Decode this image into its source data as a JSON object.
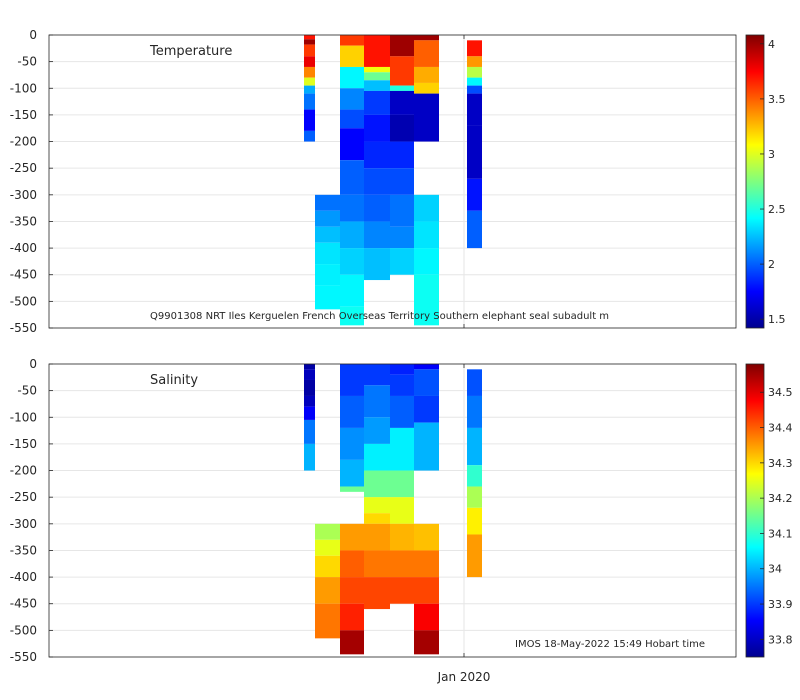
{
  "chart_data": [
    {
      "type": "heatmap",
      "title": "Temperature",
      "annotation": "Q9901308 NRT Iles Kerguelen French Overseas Territory Southern elephant seal subadult m",
      "ylim": [
        -550,
        0
      ],
      "yticks": [
        0,
        -50,
        -100,
        -150,
        -200,
        -250,
        -300,
        -350,
        -400,
        -450,
        -500,
        -550
      ],
      "xtick_label": "",
      "colorbar": {
        "min": 1.42,
        "max": 4.08,
        "ticks": [
          1.5,
          2,
          2.5,
          3,
          3.5,
          4
        ],
        "tick_labels": [
          "1.5",
          "2",
          "2.5",
          "3",
          "3.5",
          "4"
        ],
        "colormap": "jet"
      },
      "profiles": [
        {
          "column": 1,
          "segments": [
            [
              0,
              8,
              3.7
            ],
            [
              8,
              18,
              4.0
            ],
            [
              18,
              40,
              3.6
            ],
            [
              40,
              60,
              3.8
            ],
            [
              60,
              80,
              3.4
            ],
            [
              80,
              95,
              3.0
            ],
            [
              95,
              110,
              2.2
            ],
            [
              110,
              140,
              2.05
            ],
            [
              140,
              180,
              1.75
            ],
            [
              180,
              200,
              2.0
            ]
          ]
        },
        {
          "column": 2,
          "segments": [
            [
              300,
              330,
              2.05
            ],
            [
              330,
              360,
              2.15
            ],
            [
              360,
              390,
              2.25
            ],
            [
              390,
              430,
              2.35
            ],
            [
              430,
              470,
              2.38
            ],
            [
              470,
              515,
              2.4
            ]
          ]
        },
        {
          "column": 3,
          "segments": [
            [
              0,
              20,
              3.6
            ],
            [
              20,
              60,
              3.2
            ],
            [
              60,
              100,
              2.4
            ],
            [
              100,
              140,
              2.1
            ],
            [
              140,
              175,
              1.95
            ],
            [
              175,
              235,
              1.75
            ],
            [
              235,
              300,
              2.0
            ],
            [
              300,
              350,
              2.05
            ],
            [
              350,
              400,
              2.2
            ],
            [
              400,
              450,
              2.3
            ],
            [
              450,
              510,
              2.4
            ],
            [
              510,
              545,
              2.45
            ]
          ]
        },
        {
          "column": 4,
          "segments": [
            [
              0,
              60,
              3.7
            ],
            [
              60,
              70,
              3.05
            ],
            [
              70,
              85,
              2.7
            ],
            [
              85,
              105,
              2.25
            ],
            [
              105,
              150,
              1.9
            ],
            [
              150,
              200,
              1.8
            ],
            [
              200,
              250,
              1.85
            ],
            [
              250,
              300,
              1.95
            ],
            [
              300,
              350,
              2.0
            ],
            [
              350,
              400,
              2.1
            ],
            [
              400,
              460,
              2.25
            ]
          ]
        },
        {
          "column": 5,
          "segments": [
            [
              0,
              40,
              4.0
            ],
            [
              40,
              95,
              3.6
            ],
            [
              95,
              105,
              2.5
            ],
            [
              105,
              150,
              1.6
            ],
            [
              150,
              200,
              1.55
            ],
            [
              200,
              250,
              1.85
            ],
            [
              250,
              300,
              1.95
            ],
            [
              300,
              360,
              2.05
            ],
            [
              360,
              400,
              2.1
            ],
            [
              400,
              450,
              2.3
            ]
          ]
        },
        {
          "column": 6,
          "segments": [
            [
              0,
              10,
              4.0
            ],
            [
              10,
              60,
              3.5
            ],
            [
              60,
              90,
              3.3
            ],
            [
              90,
              110,
              3.2
            ],
            [
              110,
              200,
              1.6
            ],
            [
              300,
              350,
              2.3
            ],
            [
              350,
              400,
              2.35
            ],
            [
              400,
              450,
              2.4
            ],
            [
              450,
              545,
              2.45
            ]
          ]
        },
        {
          "column": 8,
          "segments": [
            [
              10,
              40,
              3.7
            ],
            [
              40,
              60,
              3.35
            ],
            [
              60,
              80,
              2.9
            ],
            [
              80,
              95,
              2.4
            ],
            [
              95,
              110,
              1.95
            ],
            [
              110,
              170,
              1.6
            ],
            [
              170,
              270,
              1.6
            ],
            [
              270,
              330,
              1.8
            ],
            [
              330,
              400,
              2.0
            ]
          ]
        }
      ]
    },
    {
      "type": "heatmap",
      "title": "Salinity",
      "annotation": "IMOS 18-May-2022 15:49 Hobart time",
      "ylim": [
        -550,
        0
      ],
      "yticks": [
        0,
        -50,
        -100,
        -150,
        -200,
        -250,
        -300,
        -350,
        -400,
        -450,
        -500,
        -550
      ],
      "xtick_label": "Jan 2020",
      "colorbar": {
        "min": 33.75,
        "max": 34.58,
        "ticks": [
          33.8,
          33.9,
          34,
          34.1,
          34.2,
          34.3,
          34.4,
          34.5
        ],
        "tick_labels": [
          "33.8",
          "33.9",
          "34",
          "34.1",
          "34.2",
          "34.3",
          "34.4",
          "34.5"
        ],
        "colormap": "jet"
      },
      "profiles": [
        {
          "column": 1,
          "segments": [
            [
              0,
              10,
              33.78
            ],
            [
              10,
              30,
              33.8
            ],
            [
              30,
              60,
              33.78
            ],
            [
              60,
              80,
              33.8
            ],
            [
              80,
              105,
              33.85
            ],
            [
              105,
              150,
              33.95
            ],
            [
              150,
              200,
              34.0
            ]
          ]
        },
        {
          "column": 2,
          "segments": [
            [
              300,
              330,
              34.2
            ],
            [
              330,
              360,
              34.25
            ],
            [
              360,
              400,
              34.3
            ],
            [
              400,
              450,
              34.35
            ],
            [
              450,
              515,
              34.38
            ]
          ]
        },
        {
          "column": 3,
          "segments": [
            [
              0,
              60,
              33.9
            ],
            [
              60,
              120,
              33.93
            ],
            [
              120,
              180,
              33.97
            ],
            [
              180,
              230,
              34.0
            ],
            [
              230,
              240,
              34.15
            ],
            [
              300,
              350,
              34.35
            ],
            [
              350,
              400,
              34.4
            ],
            [
              400,
              450,
              34.42
            ],
            [
              450,
              500,
              34.45
            ],
            [
              500,
              545,
              34.55
            ]
          ]
        },
        {
          "column": 4,
          "segments": [
            [
              0,
              40,
              33.9
            ],
            [
              40,
              100,
              33.95
            ],
            [
              100,
              150,
              33.98
            ],
            [
              150,
              200,
              34.05
            ],
            [
              200,
              250,
              34.15
            ],
            [
              250,
              280,
              34.25
            ],
            [
              280,
              300,
              34.3
            ],
            [
              300,
              350,
              34.35
            ],
            [
              350,
              400,
              34.38
            ],
            [
              400,
              460,
              34.42
            ]
          ]
        },
        {
          "column": 5,
          "segments": [
            [
              0,
              20,
              33.88
            ],
            [
              20,
              60,
              33.9
            ],
            [
              60,
              120,
              33.93
            ],
            [
              120,
              200,
              34.05
            ],
            [
              200,
              250,
              34.15
            ],
            [
              250,
              300,
              34.25
            ],
            [
              300,
              350,
              34.33
            ],
            [
              350,
              400,
              34.38
            ],
            [
              400,
              450,
              34.42
            ]
          ]
        },
        {
          "column": 6,
          "segments": [
            [
              0,
              10,
              33.85
            ],
            [
              10,
              60,
              33.92
            ],
            [
              60,
              110,
              33.9
            ],
            [
              110,
              200,
              34.0
            ],
            [
              300,
              350,
              34.32
            ],
            [
              350,
              400,
              34.38
            ],
            [
              400,
              450,
              34.42
            ],
            [
              450,
              500,
              34.48
            ],
            [
              500,
              545,
              34.55
            ]
          ]
        },
        {
          "column": 8,
          "segments": [
            [
              10,
              60,
              33.92
            ],
            [
              60,
              120,
              33.95
            ],
            [
              120,
              190,
              34.0
            ],
            [
              190,
              230,
              34.1
            ],
            [
              230,
              270,
              34.2
            ],
            [
              270,
              320,
              34.28
            ],
            [
              320,
              400,
              34.35
            ]
          ]
        }
      ]
    }
  ]
}
